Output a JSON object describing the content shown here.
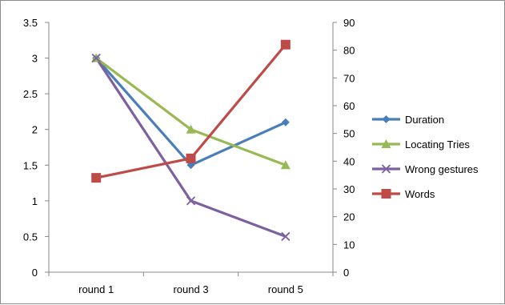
{
  "chart_data": {
    "type": "line",
    "categories": [
      "round 1",
      "round 3",
      "round 5"
    ],
    "y_left": {
      "min": 0,
      "max": 3.5,
      "step": 0.5,
      "tick_labels": [
        "0",
        "0.5",
        "1",
        "1.5",
        "2",
        "2.5",
        "3",
        "3.5"
      ]
    },
    "y_right": {
      "min": 0,
      "max": 90,
      "step": 10,
      "tick_labels": [
        "0",
        "10",
        "20",
        "30",
        "40",
        "50",
        "60",
        "70",
        "80",
        "90"
      ]
    },
    "grid": false,
    "legend_position": "right",
    "series": [
      {
        "name": "Duration",
        "axis": "left",
        "values": [
          3,
          1.5,
          2.1
        ],
        "color": "#4a7ebb",
        "marker": "diamond"
      },
      {
        "name": "Locating Tries",
        "axis": "left",
        "values": [
          3,
          2,
          1.5
        ],
        "color": "#98b954",
        "marker": "triangle"
      },
      {
        "name": "Wrong gestures",
        "axis": "left",
        "values": [
          3,
          1,
          0.5
        ],
        "color": "#7d60a0",
        "marker": "x"
      },
      {
        "name": "Words",
        "axis": "right",
        "values": [
          34,
          41,
          82
        ],
        "color": "#be4b48",
        "marker": "square"
      }
    ]
  }
}
